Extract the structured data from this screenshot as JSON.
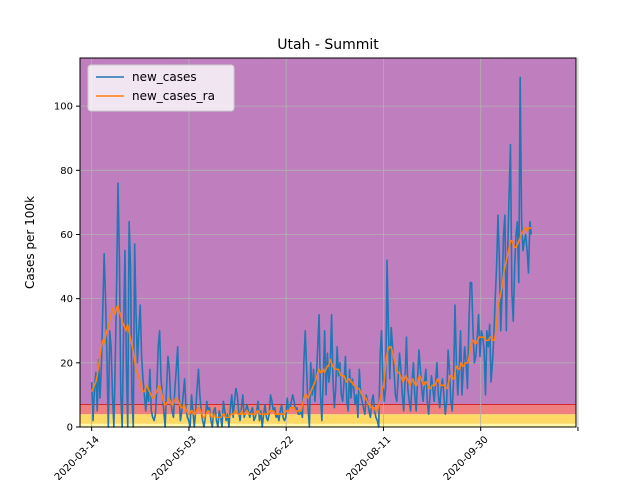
{
  "chart_data": {
    "type": "line",
    "title": "Utah - Summit",
    "xlabel": "",
    "ylabel": "Cases per 100k",
    "x_start": "2020-03-14",
    "x_end": "2020-10-26",
    "xlim": [
      "2020-03-08",
      "2020-11-18"
    ],
    "ylim": [
      0,
      115
    ],
    "x_ticks": [
      "2020-03-14",
      "2020-05-03",
      "2020-06-22",
      "2020-08-11",
      "2020-09-30",
      "2020-11-19"
    ],
    "x_tick_labels": [
      "2020-03-14",
      "2020-05-03",
      "2020-06-22",
      "2020-08-11",
      "2020-09-30",
      ""
    ],
    "y_ticks": [
      0,
      20,
      40,
      60,
      80,
      100
    ],
    "grid": true,
    "legend_position": "top-left",
    "background_bands": [
      {
        "from": 0,
        "to": 1,
        "color": "#fff8a8"
      },
      {
        "from": 1,
        "to": 4,
        "color": "#ffd966"
      },
      {
        "from": 4,
        "to": 7,
        "color": "#f08080"
      },
      {
        "from": 7,
        "to": 115,
        "color": "#bf7fbf"
      }
    ],
    "series": [
      {
        "name": "new_cases",
        "color": "#1f77b4",
        "values": [
          14,
          2,
          12,
          17,
          5,
          21,
          9,
          19,
          36,
          54,
          40,
          22,
          0,
          30,
          25,
          10,
          0,
          20,
          45,
          76,
          52,
          10,
          0,
          30,
          55,
          20,
          0,
          64,
          50,
          10,
          0,
          57,
          35,
          20,
          30,
          38,
          22,
          15,
          10,
          5,
          12,
          8,
          18,
          5,
          3,
          2,
          4,
          12,
          25,
          30,
          15,
          10,
          5,
          0,
          12,
          22,
          18,
          8,
          5,
          3,
          12,
          18,
          25,
          10,
          2,
          5,
          10,
          15,
          6,
          3,
          2,
          0,
          10,
          5,
          0,
          5,
          12,
          18,
          10,
          5,
          2,
          0,
          3,
          8,
          5,
          6,
          2,
          0,
          5,
          6,
          2,
          0,
          5,
          3,
          0,
          8,
          5,
          2,
          4,
          0,
          6,
          10,
          3,
          8,
          12,
          10,
          5,
          2,
          6,
          10,
          3,
          5,
          7,
          5,
          3,
          5,
          6,
          2,
          3,
          5,
          8,
          2,
          5,
          0,
          4,
          7,
          3,
          2,
          4,
          10,
          8,
          5,
          6,
          3,
          4,
          2,
          5,
          7,
          3,
          2,
          3,
          9,
          5,
          6,
          8,
          10,
          8,
          5,
          6,
          4,
          4,
          5,
          3,
          20,
          30,
          18,
          6,
          0,
          20,
          10,
          18,
          8,
          15,
          25,
          35,
          10,
          2,
          15,
          30,
          10,
          23,
          14,
          18,
          35,
          15,
          6,
          12,
          25,
          16,
          20,
          10,
          8,
          14,
          22,
          8,
          5,
          18,
          9,
          15,
          12,
          7,
          10,
          3,
          18,
          10,
          8,
          6,
          4,
          10,
          8,
          5,
          3,
          8,
          10,
          5,
          3,
          2,
          0,
          22,
          30,
          15,
          8,
          12,
          52,
          30,
          15,
          31,
          25,
          18,
          10,
          8,
          15,
          23,
          18,
          10,
          5,
          15,
          28,
          12,
          8,
          5,
          14,
          20,
          10,
          5,
          15,
          24,
          18,
          12,
          8,
          14,
          18,
          8,
          4,
          10,
          16,
          12,
          8,
          14,
          20,
          10,
          6,
          12,
          15,
          10,
          4,
          8,
          24,
          18,
          8,
          5,
          15,
          38,
          20,
          10,
          18,
          30,
          10,
          18,
          25,
          20,
          12,
          32,
          45,
          45,
          30,
          20,
          22,
          28,
          35,
          22,
          30,
          28,
          24,
          10,
          30,
          25,
          32,
          14,
          20,
          28,
          40,
          50,
          66,
          52,
          30,
          42,
          60,
          66,
          30,
          55,
          72,
          88,
          42,
          33,
          50,
          60,
          64,
          45,
          109,
          65,
          55,
          58,
          60,
          55,
          48,
          64,
          60
        ]
      },
      {
        "name": "new_cases_ra",
        "color": "#ff7f0e",
        "values": [
          11,
          12,
          13,
          14,
          16,
          19,
          22,
          25,
          27,
          26,
          28,
          30,
          31,
          33,
          35,
          37,
          36,
          35,
          37,
          38,
          36,
          35,
          33,
          32,
          31,
          30,
          32,
          30,
          28,
          26,
          24,
          21,
          18,
          17,
          16,
          14,
          12,
          11,
          11,
          12,
          13,
          12,
          11,
          10,
          9,
          9,
          10,
          11,
          12,
          13,
          12,
          10,
          8,
          7,
          7,
          8,
          9,
          8,
          7,
          7,
          8,
          9,
          9,
          8,
          7,
          6,
          6,
          7,
          6,
          5,
          4,
          4,
          5,
          5,
          4,
          4,
          5,
          6,
          6,
          5,
          4,
          3,
          3,
          4,
          5,
          5,
          4,
          3,
          3,
          4,
          3,
          3,
          3,
          3,
          3,
          4,
          4,
          3,
          3,
          3,
          3,
          4,
          4,
          4,
          5,
          5,
          4,
          4,
          4,
          5,
          4,
          4,
          5,
          5,
          4,
          4,
          4,
          4,
          4,
          4,
          5,
          5,
          4,
          4,
          4,
          4,
          4,
          4,
          4,
          5,
          5,
          5,
          5,
          4,
          4,
          4,
          4,
          4,
          4,
          4,
          4,
          5,
          5,
          5,
          6,
          6,
          6,
          6,
          5,
          5,
          5,
          5,
          5,
          7,
          9,
          10,
          10,
          9,
          10,
          11,
          12,
          13,
          14,
          15,
          17,
          18,
          17,
          17,
          18,
          17,
          18,
          19,
          19,
          21,
          20,
          19,
          18,
          18,
          18,
          18,
          17,
          16,
          16,
          16,
          15,
          14,
          15,
          15,
          14,
          14,
          13,
          13,
          12,
          12,
          12,
          11,
          10,
          10,
          9,
          9,
          8,
          7,
          7,
          6,
          6,
          6,
          5,
          5,
          6,
          8,
          10,
          12,
          13,
          18,
          22,
          24,
          25,
          25,
          24,
          22,
          20,
          18,
          17,
          17,
          16,
          15,
          14,
          15,
          16,
          15,
          14,
          13,
          14,
          15,
          14,
          13,
          13,
          15,
          16,
          15,
          14,
          13,
          14,
          14,
          13,
          12,
          12,
          13,
          13,
          13,
          14,
          15,
          14,
          13,
          13,
          13,
          13,
          12,
          12,
          14,
          16,
          16,
          15,
          15,
          18,
          19,
          18,
          18,
          20,
          19,
          19,
          20,
          20,
          20,
          22,
          25,
          27,
          27,
          26,
          26,
          27,
          28,
          28,
          28,
          28,
          28,
          27,
          27,
          27,
          28,
          28,
          27,
          27,
          29,
          33,
          38,
          40,
          42,
          44,
          48,
          50,
          52,
          54,
          56,
          58,
          58,
          57,
          56,
          56,
          57,
          58,
          59,
          60,
          61,
          62,
          62,
          61,
          62,
          62,
          62
        ]
      }
    ]
  }
}
